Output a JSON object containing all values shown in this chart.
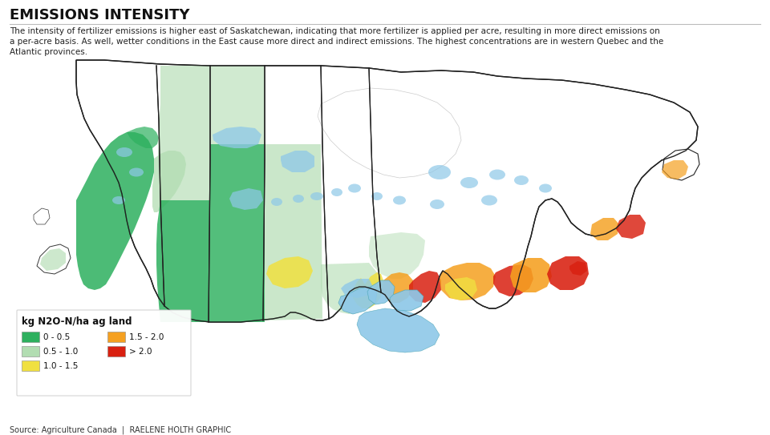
{
  "title": "EMISSIONS INTENSITY",
  "description_line1": "The intensity of fertilizer emissions is higher east of Saskatchewan, indicating that more fertilizer is applied per acre, resulting in more direct emissions on",
  "description_line2": "a per-acre basis. As well, wetter conditions in the East cause more direct and indirect emissions. The highest concentrations are in western Quebec and the",
  "description_line3": "Atlantic provinces.",
  "source": "Source: Agriculture Canada  |  RAELENE HOLTH GRAPHIC",
  "legend_title": "kg N2O-N/ha ag land",
  "legend_colors": [
    "#2db05e",
    "#b2ddb2",
    "#f0e040",
    "#f5a020",
    "#d92010"
  ],
  "legend_labels": [
    "0 - 0.5",
    "0.5 - 1.0",
    "1.0 - 1.5",
    "1.5 - 2.0",
    "> 2.0"
  ],
  "bg_color": "#ffffff",
  "title_color": "#111111",
  "text_color": "#222222",
  "source_color": "#333333",
  "divider_color": "#bbbbbb",
  "border_color": "#222222",
  "water_color": "#8ec8e8",
  "figsize": [
    9.6,
    5.43
  ],
  "dpi": 100
}
